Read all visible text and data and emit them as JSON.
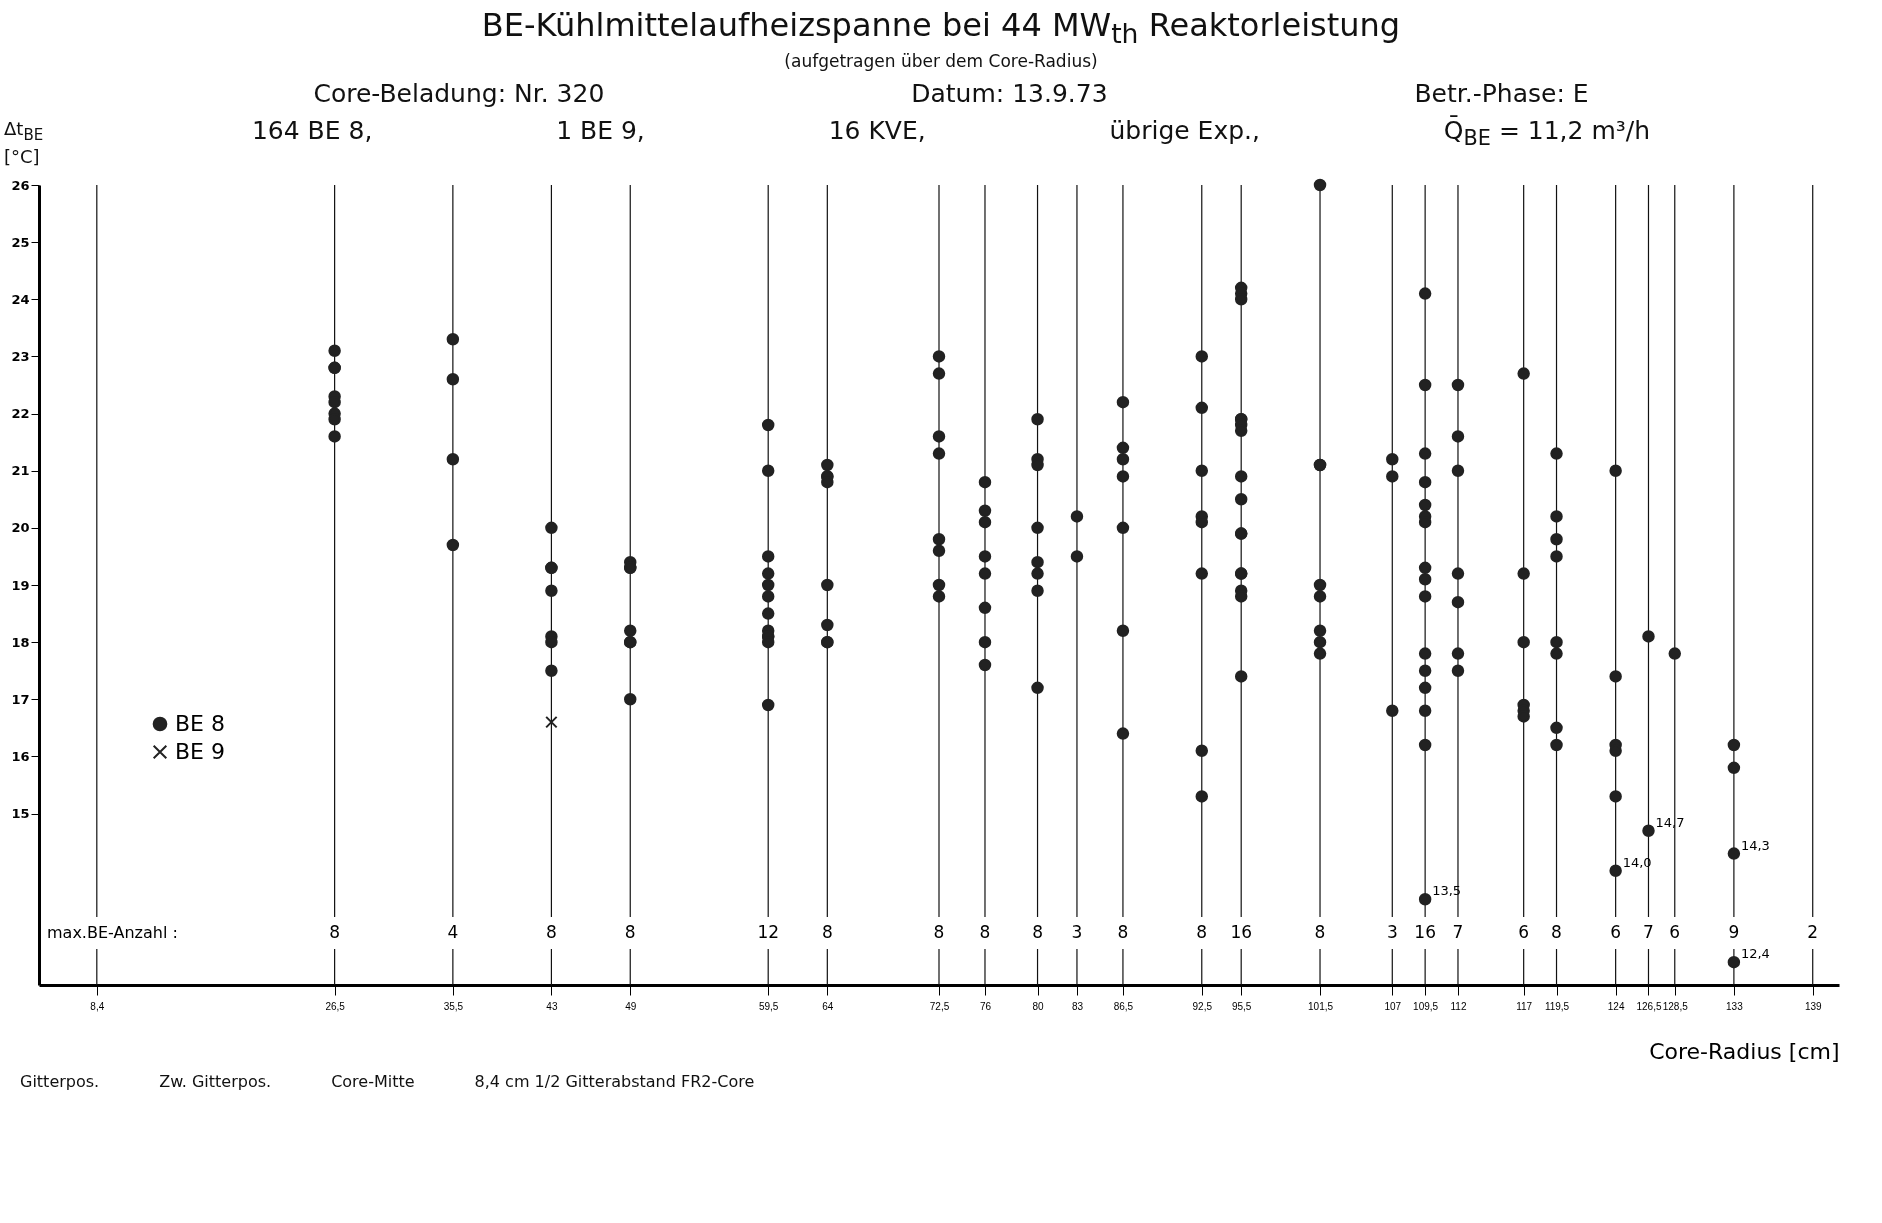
{
  "chart_data": {
    "type": "scatter",
    "title": "BE-Kühlmittelaufheizspanne bei 44 MW$_{th}$ Reaktorleistung",
    "subtitle": "(aufgetragen über dem Core-Radius)",
    "xlabel": "Core-Radius [cm]",
    "ylabel": "Δt$_{BE}$ [°C]",
    "xlim": [
      4,
      141
    ],
    "ylim": [
      12,
      26
    ],
    "xticks": [
      {
        "value": 8.4,
        "label": "8,4"
      },
      {
        "value": 26.5,
        "label": "26,5"
      },
      {
        "value": 35.5,
        "label": "35,5"
      },
      43,
      49,
      {
        "value": 59.5,
        "label": "59,5"
      },
      64,
      {
        "value": 72.5,
        "label": "72,5"
      },
      76,
      80,
      83,
      {
        "value": 86.5,
        "label": "86,5"
      },
      {
        "value": 92.5,
        "label": "92,5"
      },
      {
        "value": 95.5,
        "label": "95,5"
      },
      {
        "value": 101.5,
        "label": "101,5"
      },
      107,
      {
        "value": 109.5,
        "label": "109,5"
      },
      112,
      117,
      {
        "value": 119.5,
        "label": "119,5"
      },
      124,
      {
        "value": 126.5,
        "label": "126,5"
      },
      {
        "value": 128.5,
        "label": "128,5"
      },
      133,
      139
    ],
    "yticks": [
      15,
      16,
      17,
      18,
      19,
      20,
      21,
      22,
      23,
      24,
      25,
      26
    ],
    "grid": "x",
    "legend": "bottom left",
    "series": [
      {
        "name": "BE 8",
        "color": "#222222",
        "marker": "circle",
        "x": [
          26.5,
          26.5,
          26.5,
          26.5,
          26.5,
          26.5,
          26.5,
          26.5,
          35.5,
          35.5,
          35.5,
          35.5,
          43,
          43,
          43,
          43,
          43,
          43,
          43,
          49,
          49,
          49,
          49,
          49,
          49,
          49,
          59.5,
          59.5,
          59.5,
          59.5,
          59.5,
          59.5,
          59.5,
          59.5,
          59.5,
          59.5,
          59.5,
          59.5,
          64,
          64,
          64,
          64,
          64,
          64,
          64,
          64,
          72.5,
          72.5,
          72.5,
          72.5,
          72.5,
          72.5,
          72.5,
          72.5,
          76,
          76,
          76,
          76,
          76,
          76,
          76,
          76,
          80,
          80,
          80,
          80,
          80,
          80,
          80,
          80,
          83,
          83,
          86.5,
          86.5,
          86.5,
          86.5,
          86.5,
          86.5,
          86.5,
          92.5,
          92.5,
          92.5,
          92.5,
          92.5,
          92.5,
          92.5,
          92.5,
          95.5,
          95.5,
          95.5,
          95.5,
          95.5,
          95.5,
          95.5,
          95.5,
          95.5,
          95.5,
          95.5,
          95.5,
          95.5,
          95.5,
          95.5,
          95.5,
          101.5,
          101.5,
          101.5,
          101.5,
          101.5,
          101.5,
          101.5,
          101.5,
          107,
          107,
          107,
          109.5,
          109.5,
          109.5,
          109.5,
          109.5,
          109.5,
          109.5,
          109.5,
          109.5,
          109.5,
          109.5,
          109.5,
          109.5,
          109.5,
          109.5,
          109.5,
          112,
          112,
          112,
          112,
          112,
          112,
          112,
          117,
          117,
          117,
          117,
          117,
          117,
          119.5,
          119.5,
          119.5,
          119.5,
          119.5,
          119.5,
          119.5,
          119.5,
          124,
          124,
          124,
          124,
          124,
          124,
          126.5,
          126.5,
          128.5,
          133,
          133,
          133,
          133
        ],
        "values": [
          23.1,
          22.8,
          22.8,
          22.3,
          22.2,
          22.0,
          21.9,
          21.6,
          23.3,
          22.6,
          21.2,
          19.7,
          20.0,
          19.3,
          19.3,
          18.9,
          18.1,
          18.0,
          17.5,
          19.4,
          19.3,
          19.3,
          18.2,
          18.0,
          18.0,
          17.0,
          21.8,
          21.0,
          19.5,
          19.2,
          19.0,
          18.8,
          18.5,
          18.2,
          18.1,
          18.1,
          18.0,
          16.9,
          21.1,
          20.9,
          20.9,
          20.8,
          19.0,
          18.3,
          18.0,
          18.0,
          23.0,
          22.7,
          21.6,
          21.3,
          19.8,
          19.6,
          19.0,
          18.8,
          20.8,
          20.3,
          20.1,
          19.5,
          19.2,
          18.6,
          18.0,
          17.6,
          21.9,
          21.2,
          21.1,
          20.0,
          19.4,
          19.2,
          18.9,
          17.2,
          20.2,
          19.5,
          22.2,
          21.4,
          21.2,
          20.9,
          20.0,
          18.2,
          16.4,
          23.0,
          22.1,
          21.0,
          20.2,
          20.1,
          19.2,
          16.1,
          15.3,
          24.2,
          24.1,
          24.0,
          21.9,
          21.9,
          21.8,
          21.7,
          20.9,
          20.5,
          19.9,
          19.9,
          19.2,
          19.2,
          18.9,
          18.8,
          17.4,
          26.0,
          21.1,
          21.1,
          19.0,
          18.8,
          18.2,
          18.0,
          17.8,
          21.2,
          20.9,
          16.8,
          24.1,
          22.5,
          21.3,
          20.8,
          20.4,
          20.2,
          20.1,
          19.3,
          19.1,
          18.8,
          17.8,
          17.5,
          17.2,
          16.8,
          16.2,
          13.5,
          22.5,
          21.6,
          21.0,
          19.2,
          18.7,
          17.8,
          17.5,
          22.7,
          19.2,
          18.0,
          16.9,
          16.8,
          16.7,
          21.3,
          20.2,
          19.8,
          19.5,
          18.0,
          17.8,
          16.5,
          16.2,
          21.0,
          17.4,
          16.2,
          16.1,
          15.3,
          14.0,
          18.1,
          14.7,
          17.8,
          16.2,
          15.8,
          14.3,
          12.4
        ]
      },
      {
        "name": "BE 9",
        "color": "#222222",
        "marker": "cross",
        "x": [
          43
        ],
        "values": [
          16.6
        ]
      }
    ],
    "annotations": [
      "Core-Beladung: Nr. 320",
      "Datum: 13.9.73",
      "Betr.-Phase: E",
      "164 BE 8,",
      "1 BE 9,",
      "16 KVE,",
      "übrige Exp.,",
      "Q̄$_{BE}$ =  11,2 m³/h",
      "Gitterpos.",
      "Zw. Gitterpos.",
      "Core-Mitte",
      "8,4 cm  1/2 Gitterabstand FR2-Core",
      "max.BE-Anzahl :",
      "8",
      "4",
      "8",
      "8",
      "12",
      "8",
      "8",
      "8",
      "8",
      "3",
      "8",
      "8",
      "16",
      "8",
      "3",
      "16",
      "7",
      "6",
      "8",
      "6",
      "7",
      "6",
      "9",
      "2",
      {
        "text": "13,5",
        "x": 109.5,
        "y": 13.5
      },
      {
        "text": "14,0",
        "x": 124,
        "y": 14.0
      },
      {
        "text": "14,7",
        "x": 126.5,
        "y": 14.7
      },
      {
        "text": "14,3",
        "x": 133,
        "y": 14.3
      },
      {
        "text": "12,4",
        "x": 133,
        "y": 12.4
      }
    ]
  }
}
